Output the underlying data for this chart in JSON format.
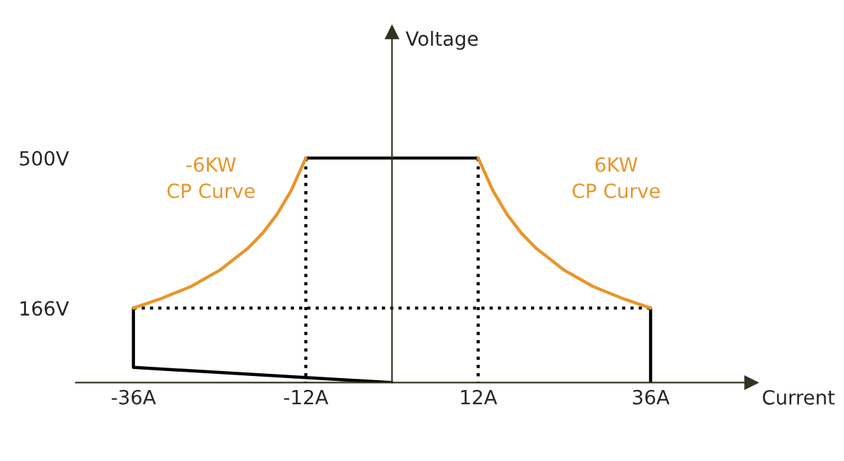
{
  "chart_data": {
    "type": "line",
    "xlabel": "Current",
    "ylabel": "Voltage",
    "xlim": [
      -44,
      50
    ],
    "ylim": [
      0,
      780
    ],
    "xticks": [
      {
        "value": -36,
        "label": "-36A"
      },
      {
        "value": -12,
        "label": "-12A"
      },
      {
        "value": 12,
        "label": "12A"
      },
      {
        "value": 36,
        "label": "36A"
      }
    ],
    "yticks": [
      {
        "value": 166,
        "label": "166V"
      },
      {
        "value": 500,
        "label": "500V"
      }
    ],
    "grid": false,
    "legend": false,
    "marker": "none",
    "series": [
      {
        "color": "#000000",
        "line_style": "solid",
        "x": [
          -12,
          12
        ],
        "values": [
          500,
          500
        ]
      },
      {
        "color": "#000000",
        "line_style": "solid",
        "x": [
          36,
          36
        ],
        "values": [
          166,
          0
        ]
      },
      {
        "color": "#000000",
        "line_style": "solid",
        "x": [
          -36,
          -36,
          0
        ],
        "values": [
          166,
          34,
          0
        ]
      },
      {
        "color": "#000000",
        "line_style": "dotted",
        "x": [
          -36,
          36
        ],
        "values": [
          166,
          166
        ]
      },
      {
        "color": "#000000",
        "line_style": "dotted",
        "x": [
          -12,
          -12
        ],
        "values": [
          500,
          0
        ]
      },
      {
        "color": "#000000",
        "line_style": "dotted",
        "x": [
          12,
          12
        ],
        "values": [
          500,
          0
        ]
      },
      {
        "color": "#e8952a",
        "line_style": "solid",
        "x": [
          12,
          14,
          16,
          18,
          20,
          24,
          28,
          32,
          36
        ],
        "values": [
          500,
          429,
          375,
          333,
          300,
          250,
          214,
          188,
          166
        ]
      },
      {
        "color": "#e8952a",
        "line_style": "solid",
        "x": [
          -12,
          -14,
          -16,
          -18,
          -20,
          -24,
          -28,
          -32,
          -36
        ],
        "values": [
          500,
          429,
          375,
          333,
          300,
          250,
          214,
          188,
          166
        ]
      }
    ],
    "annotations": [
      "-6KW\nCP Curve",
      "6KW\nCP Curve"
    ]
  }
}
